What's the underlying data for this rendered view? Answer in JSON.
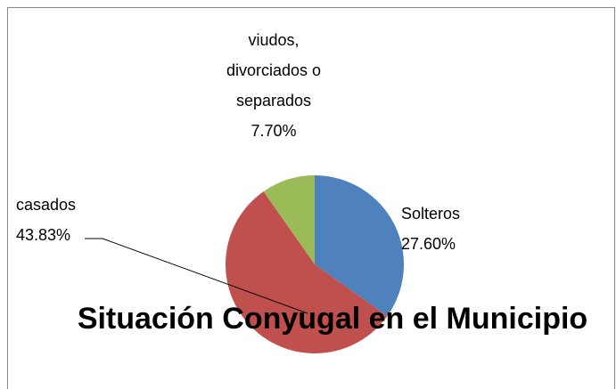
{
  "chart_data": {
    "type": "pie",
    "title": "Situación Conyugal en el Municipio",
    "categories": [
      "Solteros",
      "casados",
      "viudos, divorciados o separados"
    ],
    "values": [
      27.6,
      43.83,
      7.7
    ],
    "value_labels": [
      "27.60%",
      "43.83%",
      "7.70%"
    ],
    "colors": [
      "#4f81bd",
      "#c0504d",
      "#9bbb59"
    ]
  }
}
